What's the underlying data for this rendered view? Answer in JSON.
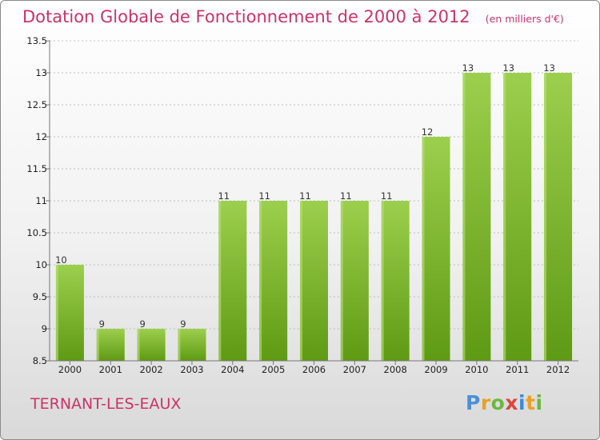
{
  "title": "Dotation Globale de Fonctionnement de 2000 à 2012",
  "unit_note": "(en milliers d'€)",
  "commune": "TERNANT-LES-EAUX",
  "logo": "Proxiti",
  "colors": {
    "title": "#cc3366",
    "bar_light": "#9ccf4d",
    "bar_dark": "#5f9a14",
    "grid": "#bdbdbd"
  },
  "chart_data": {
    "type": "bar",
    "title": "Dotation Globale de Fonctionnement de 2000 à 2012",
    "subtitle": "(en milliers d'€)",
    "categories": [
      "2000",
      "2001",
      "2002",
      "2003",
      "2004",
      "2005",
      "2006",
      "2007",
      "2008",
      "2009",
      "2010",
      "2011",
      "2012"
    ],
    "values": [
      10,
      9,
      9,
      9,
      11,
      11,
      11,
      11,
      11,
      12,
      13,
      13,
      13
    ],
    "ylim": [
      8.5,
      13.5
    ],
    "yticks": [
      "8.5",
      "9",
      "9.5",
      "10",
      "10.5",
      "11",
      "11.5",
      "12",
      "12.5",
      "13",
      "13.5"
    ],
    "grid": true,
    "data_labels": true
  }
}
